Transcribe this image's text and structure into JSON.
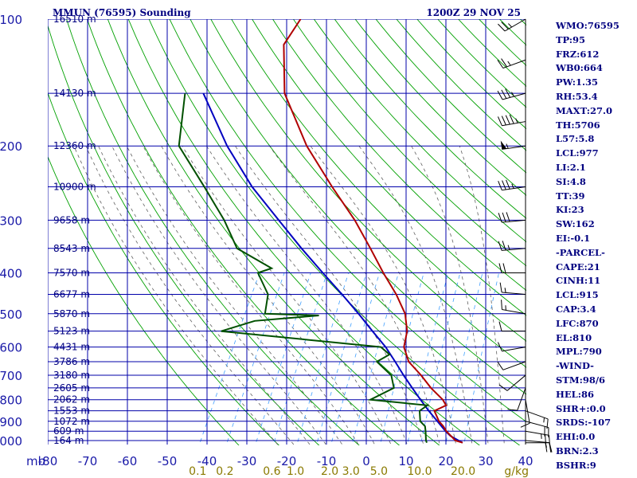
{
  "chart_data": {
    "type": "skew-t",
    "title_left": "MMUN (76595) Sounding",
    "title_right": "1200Z 29 NOV 25",
    "pressure_axis_label": "mb",
    "pressure_levels": [
      100,
      200,
      300,
      400,
      500,
      600,
      700,
      800,
      900,
      1000
    ],
    "pressure_labels": [
      "100",
      "200",
      "300",
      "400",
      "500",
      "600",
      "700",
      "800",
      "900",
      "1000"
    ],
    "temperature_ticks": [
      -80,
      -70,
      -60,
      -50,
      -40,
      -30,
      -20,
      -10,
      0,
      10,
      20,
      30,
      40
    ],
    "temperature_labels": [
      "-80",
      "-70",
      "-60",
      "-50",
      "-40",
      "-30",
      "-20",
      "-10",
      "0",
      "10",
      "20",
      "30",
      "40"
    ],
    "temperature_range": [
      -80,
      40
    ],
    "pressure_range": [
      100,
      1050
    ],
    "mixing_ratio_labels": [
      "0.1",
      "0.2",
      "0.6",
      "1.0",
      "2.0",
      "3.0",
      "5.0",
      "10.0",
      "20.0"
    ],
    "mixing_ratio_unit": "g/kg",
    "heights": [
      {
        "p": 100,
        "label": "16510 m"
      },
      {
        "p": 150,
        "label": "14130 m"
      },
      {
        "p": 200,
        "label": "12360 m"
      },
      {
        "p": 250,
        "label": "10900 m"
      },
      {
        "p": 300,
        "label": "9658 m"
      },
      {
        "p": 350,
        "label": "8543 m"
      },
      {
        "p": 400,
        "label": "7570 m"
      },
      {
        "p": 450,
        "label": "6677 m"
      },
      {
        "p": 500,
        "label": "5870 m"
      },
      {
        "p": 550,
        "label": "5123 m"
      },
      {
        "p": 600,
        "label": "4431 m"
      },
      {
        "p": 650,
        "label": "3786 m"
      },
      {
        "p": 700,
        "label": "3180 m"
      },
      {
        "p": 750,
        "label": "2605 m"
      },
      {
        "p": 800,
        "label": "2062 m"
      },
      {
        "p": 850,
        "label": "1553 m"
      },
      {
        "p": 900,
        "label": "1072 m"
      },
      {
        "p": 950,
        "label": "609 m"
      },
      {
        "p": 1000,
        "label": "164 m"
      }
    ],
    "temperature_profile": [
      [
        1012,
        24.5
      ],
      [
        1000,
        22.4
      ],
      [
        950,
        18.8
      ],
      [
        925,
        17.4
      ],
      [
        900,
        15.6
      ],
      [
        850,
        13.0
      ],
      [
        825,
        15.2
      ],
      [
        800,
        13.6
      ],
      [
        750,
        9.0
      ],
      [
        700,
        4.8
      ],
      [
        650,
        -0.2
      ],
      [
        600,
        -3.4
      ],
      [
        550,
        -4.8
      ],
      [
        500,
        -7.7
      ],
      [
        450,
        -12.6
      ],
      [
        400,
        -18.8
      ],
      [
        350,
        -25.4
      ],
      [
        300,
        -33.2
      ],
      [
        250,
        -43.5
      ],
      [
        200,
        -55.5
      ],
      [
        150,
        -68.3
      ],
      [
        115,
        -75.2
      ],
      [
        100,
        -74.5
      ]
    ],
    "dewpoint_profile": [
      [
        1012,
        15.5
      ],
      [
        1000,
        15.0
      ],
      [
        950,
        13.6
      ],
      [
        925,
        12.8
      ],
      [
        900,
        10.9
      ],
      [
        850,
        9.3
      ],
      [
        825,
        10.5
      ],
      [
        800,
        -4.6
      ],
      [
        750,
        -0.3
      ],
      [
        700,
        -2.7
      ],
      [
        650,
        -8.2
      ],
      [
        625,
        -6.0
      ],
      [
        600,
        -9.2
      ],
      [
        550,
        -51.5
      ],
      [
        520,
        -44.5
      ],
      [
        505,
        -29.1
      ],
      [
        500,
        -42.9
      ],
      [
        450,
        -44.8
      ],
      [
        400,
        -50.3
      ],
      [
        390,
        -47.5
      ],
      [
        350,
        -58.9
      ],
      [
        300,
        -66.0
      ],
      [
        250,
        -75.6
      ],
      [
        200,
        -87.6
      ],
      [
        150,
        -93.3
      ]
    ],
    "parcel_profile": [
      [
        1012,
        24.5
      ],
      [
        975,
        20.5
      ],
      [
        950,
        18.6
      ],
      [
        900,
        15.2
      ],
      [
        850,
        11.6
      ],
      [
        800,
        8.0
      ],
      [
        750,
        4.3
      ],
      [
        700,
        0.4
      ],
      [
        650,
        -3.6
      ],
      [
        600,
        -8.0
      ],
      [
        550,
        -13.5
      ],
      [
        500,
        -19.4
      ],
      [
        450,
        -26.2
      ],
      [
        400,
        -34.0
      ],
      [
        350,
        -42.7
      ],
      [
        300,
        -52.3
      ],
      [
        250,
        -63.6
      ],
      [
        200,
        -75.5
      ],
      [
        150,
        -88.7
      ]
    ],
    "wind_barbs": [
      {
        "p": 1012,
        "dir": 90,
        "spd": 15
      },
      {
        "p": 1000,
        "dir": 95,
        "spd": 20
      },
      {
        "p": 950,
        "dir": 100,
        "spd": 25
      },
      {
        "p": 900,
        "dir": 105,
        "spd": 20
      },
      {
        "p": 850,
        "dir": 110,
        "spd": 15
      },
      {
        "p": 800,
        "dir": 170,
        "spd": 10
      },
      {
        "p": 750,
        "dir": 200,
        "spd": 10
      },
      {
        "p": 700,
        "dir": 230,
        "spd": 10
      },
      {
        "p": 650,
        "dir": 250,
        "spd": 10
      },
      {
        "p": 600,
        "dir": 260,
        "spd": 10
      },
      {
        "p": 550,
        "dir": 270,
        "spd": 10
      },
      {
        "p": 500,
        "dir": 280,
        "spd": 15
      },
      {
        "p": 450,
        "dir": 275,
        "spd": 15
      },
      {
        "p": 400,
        "dir": 270,
        "spd": 20
      },
      {
        "p": 350,
        "dir": 265,
        "spd": 25
      },
      {
        "p": 300,
        "dir": 265,
        "spd": 30
      },
      {
        "p": 250,
        "dir": 262,
        "spd": 35
      },
      {
        "p": 200,
        "dir": 262,
        "spd": 55
      },
      {
        "p": 175,
        "dir": 260,
        "spd": 45
      },
      {
        "p": 150,
        "dir": 255,
        "spd": 35
      },
      {
        "p": 125,
        "dir": 250,
        "spd": 25
      },
      {
        "p": 100,
        "dir": 240,
        "spd": 25
      }
    ],
    "colors": {
      "grid": "#0000aa",
      "dry_adiabat": "#00a000",
      "moist_adiabat": "#606060",
      "mixing_ratio": "#40a0ff",
      "temperature": "#b00000",
      "dewpoint": "#005000",
      "parcel": "#0000c0",
      "wind": "#000000"
    }
  },
  "indices": [
    "WMO:76595",
    "TP:95",
    "FRZ:612",
    "WB0:664",
    "PW:1.35",
    "RH:53.4",
    "MAXT:27.0",
    "TH:5706",
    "L57:5.8",
    "LCL:977",
    "LI:2.1",
    "SI:4.8",
    "TT:39",
    "KI:23",
    "SW:162",
    "EI:-0.1",
    "-PARCEL-",
    "CAPE:21",
    "CINH:11",
    "LCL:915",
    "CAP:3.4",
    "LFC:870",
    "EL:810",
    "MPL:790",
    "-WIND-",
    "STM:98/6",
    "HEL:86",
    "SHR+:0.0",
    "SRDS:-107",
    "EHI:0.0",
    "BRN:2.3",
    "BSHR:9"
  ]
}
